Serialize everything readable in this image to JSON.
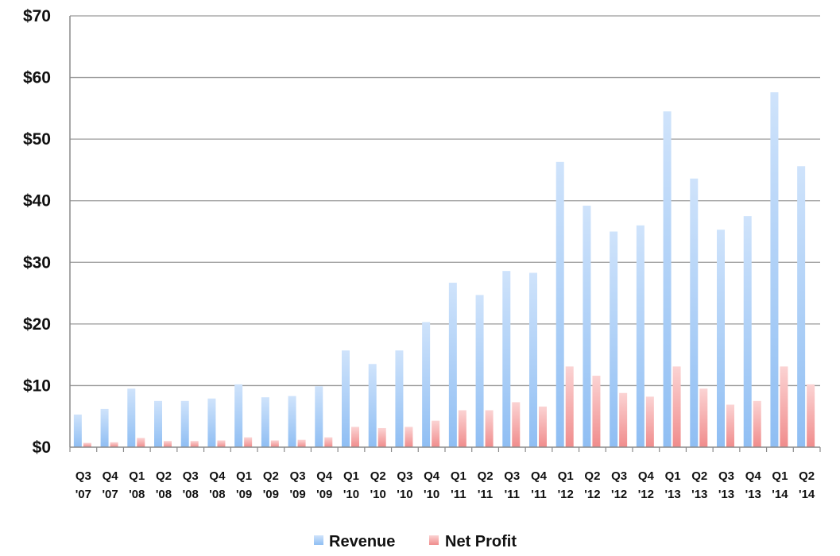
{
  "chart_data": {
    "type": "bar",
    "categories": [
      [
        "Q3",
        "'07"
      ],
      [
        "Q4",
        "'07"
      ],
      [
        "Q1",
        "'08"
      ],
      [
        "Q2",
        "'08"
      ],
      [
        "Q3",
        "'08"
      ],
      [
        "Q4",
        "'08"
      ],
      [
        "Q1",
        "'09"
      ],
      [
        "Q2",
        "'09"
      ],
      [
        "Q3",
        "'09"
      ],
      [
        "Q4",
        "'09"
      ],
      [
        "Q1",
        "'10"
      ],
      [
        "Q2",
        "'10"
      ],
      [
        "Q3",
        "'10"
      ],
      [
        "Q4",
        "'10"
      ],
      [
        "Q1",
        "'11"
      ],
      [
        "Q2",
        "'11"
      ],
      [
        "Q3",
        "'11"
      ],
      [
        "Q4",
        "'11"
      ],
      [
        "Q1",
        "'12"
      ],
      [
        "Q2",
        "'12"
      ],
      [
        "Q3",
        "'12"
      ],
      [
        "Q4",
        "'12"
      ],
      [
        "Q1",
        "'13"
      ],
      [
        "Q2",
        "'13"
      ],
      [
        "Q3",
        "'13"
      ],
      [
        "Q4",
        "'13"
      ],
      [
        "Q1",
        "'14"
      ],
      [
        "Q2",
        "'14"
      ]
    ],
    "series": [
      {
        "name": "Revenue",
        "color": "#8fbef3",
        "values": [
          5.3,
          6.2,
          9.5,
          7.5,
          7.5,
          7.9,
          10.2,
          8.1,
          8.3,
          9.9,
          15.7,
          13.5,
          15.7,
          20.3,
          26.7,
          24.7,
          28.6,
          28.3,
          46.3,
          39.2,
          35.0,
          36.0,
          54.5,
          43.6,
          35.3,
          37.5,
          57.6,
          45.6
        ]
      },
      {
        "name": "Net Profit",
        "color": "#f08c8c",
        "values": [
          0.7,
          0.8,
          1.5,
          1.0,
          1.0,
          1.1,
          1.6,
          1.1,
          1.2,
          1.6,
          3.3,
          3.1,
          3.3,
          4.3,
          6.0,
          6.0,
          7.3,
          6.6,
          13.1,
          11.6,
          8.8,
          8.2,
          13.1,
          9.5,
          6.9,
          7.5,
          13.1,
          10.2
        ]
      }
    ],
    "ylim": [
      0,
      70
    ],
    "yticks": [
      0,
      10,
      20,
      30,
      40,
      50,
      60,
      70
    ],
    "ytick_labels": [
      "$0",
      "$10",
      "$20",
      "$30",
      "$40",
      "$50",
      "$60",
      "$70"
    ],
    "grid": true,
    "legend": "bottom",
    "title": "",
    "xlabel": "",
    "ylabel": ""
  }
}
